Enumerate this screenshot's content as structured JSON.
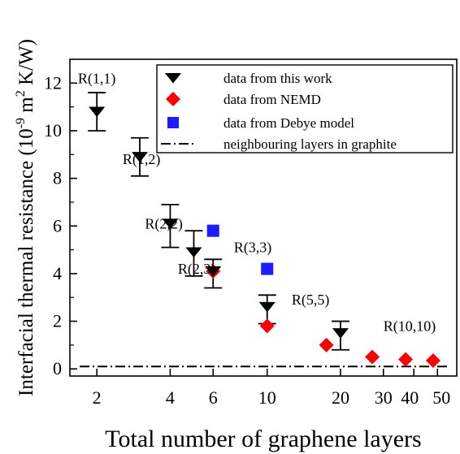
{
  "chart_data": {
    "type": "scatter",
    "xlabel": "Total number of graphene layers",
    "ylabel": "Interfacial thermal resistance (10",
    "ylabel_sup": "-9",
    "ylabel_mid": " m",
    "ylabel_sup2": "2",
    "ylabel_tail": " K/W)",
    "x_scale": "log",
    "xlim": [
      1.55,
      60
    ],
    "ylim": [
      -0.3,
      13
    ],
    "x_ticks": [
      2,
      4,
      6,
      10,
      20,
      30,
      40,
      50
    ],
    "x_tick_labels": [
      "2",
      "4",
      "6",
      "10",
      "20",
      "30",
      "40",
      "50"
    ],
    "y_ticks": [
      0,
      2,
      4,
      6,
      8,
      10,
      12
    ],
    "y_tick_labels": [
      "0",
      "2",
      "4",
      "6",
      "8",
      "10",
      "12"
    ],
    "legend_position": "top-right",
    "series": [
      {
        "name": "data from this work",
        "marker": "triangle-down",
        "color": "#000000",
        "points": [
          {
            "x": 2,
            "y": 10.8,
            "err_low": 10.0,
            "err_high": 11.6
          },
          {
            "x": 3,
            "y": 8.9,
            "err_low": 8.1,
            "err_high": 9.7
          },
          {
            "x": 4,
            "y": 6.1,
            "err_low": 5.1,
            "err_high": 6.9
          },
          {
            "x": 5,
            "y": 4.9,
            "err_low": 3.9,
            "err_high": 5.8
          },
          {
            "x": 6,
            "y": 4.1,
            "err_low": 3.4,
            "err_high": 4.6
          },
          {
            "x": 10,
            "y": 2.6,
            "err_low": 1.9,
            "err_high": 3.1
          },
          {
            "x": 20,
            "y": 1.5,
            "err_low": 0.8,
            "err_high": 2.0
          }
        ]
      },
      {
        "name": "data from NEMD",
        "marker": "diamond",
        "color": "#ff0000",
        "points": [
          {
            "x": 6,
            "y": 4.1
          },
          {
            "x": 10,
            "y": 1.8
          },
          {
            "x": 17.5,
            "y": 1.0
          },
          {
            "x": 27,
            "y": 0.5
          },
          {
            "x": 37,
            "y": 0.4
          },
          {
            "x": 48,
            "y": 0.35
          }
        ]
      },
      {
        "name": "data from Debye model",
        "marker": "square",
        "color": "#1c1cff",
        "points": [
          {
            "x": 6,
            "y": 5.8
          },
          {
            "x": 10,
            "y": 4.2
          }
        ]
      },
      {
        "name": "neighbouring layers in graphite",
        "marker": "dash-dot-line",
        "color": "#000000",
        "y": 0.1
      }
    ],
    "annotations": [
      {
        "text": "R(1,1)",
        "x": 2,
        "y": 12.2
      },
      {
        "text": "R(1,2)",
        "x": 2.55,
        "y": 8.8
      },
      {
        "text": "R(2,2)",
        "x": 3.15,
        "y": 6.1
      },
      {
        "text": "R(2,3)",
        "x": 4.3,
        "y": 4.2
      },
      {
        "text": "R(3,3)",
        "x": 7.3,
        "y": 5.1
      },
      {
        "text": "R(5,5)",
        "x": 12.6,
        "y": 2.9
      },
      {
        "text": "R(10,10)",
        "x": 30,
        "y": 1.8
      }
    ]
  }
}
